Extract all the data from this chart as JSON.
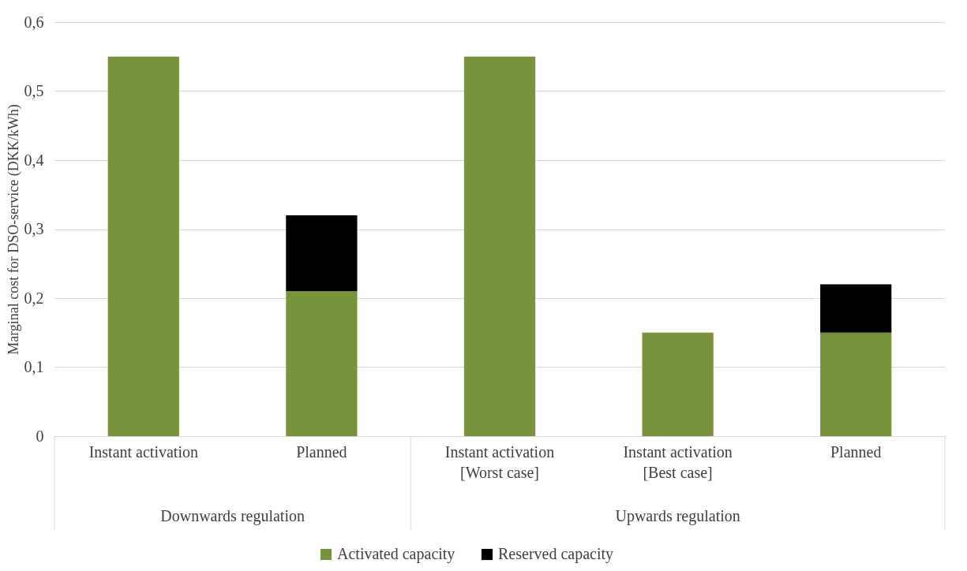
{
  "chart_data": {
    "type": "bar",
    "stacked": true,
    "ylabel": "Marginal cost for DSO-service (DKK/kWh)",
    "categories": [
      "Instant activation",
      "Planned",
      "Instant activation\n[Worst case]",
      "Instant activation\n[Best case]",
      "Planned"
    ],
    "series": [
      {
        "name": "Activated capacity",
        "color": "#77933c",
        "values": [
          0.55,
          0.21,
          0.55,
          0.15,
          0.15
        ]
      },
      {
        "name": "Reserved capacity",
        "color": "#000000",
        "values": [
          null,
          0.11,
          null,
          null,
          0.07
        ]
      }
    ],
    "ylim": [
      0,
      0.6
    ],
    "yticks": [
      0,
      {
        "value": 0.1,
        "label": "0,1"
      },
      {
        "value": 0.2,
        "label": "0,2"
      },
      {
        "value": 0.3,
        "label": "0,3"
      },
      {
        "value": 0.4,
        "label": "0,4"
      },
      {
        "value": 0.5,
        "label": "0,5"
      },
      {
        "value": 0.6,
        "label": "0,6"
      }
    ],
    "grid": "y",
    "legend": "bottom",
    "annotations": [
      "Downwards regulation",
      "Upwards regulation"
    ]
  }
}
